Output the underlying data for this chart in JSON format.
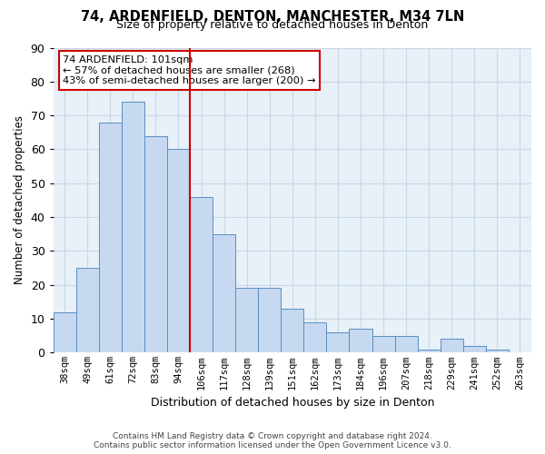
{
  "title": "74, ARDENFIELD, DENTON, MANCHESTER, M34 7LN",
  "subtitle": "Size of property relative to detached houses in Denton",
  "xlabel": "Distribution of detached houses by size in Denton",
  "ylabel": "Number of detached properties",
  "categories": [
    "38sqm",
    "49sqm",
    "61sqm",
    "72sqm",
    "83sqm",
    "94sqm",
    "106sqm",
    "117sqm",
    "128sqm",
    "139sqm",
    "151sqm",
    "162sqm",
    "173sqm",
    "184sqm",
    "196sqm",
    "207sqm",
    "218sqm",
    "229sqm",
    "241sqm",
    "252sqm",
    "263sqm"
  ],
  "values": [
    12,
    25,
    68,
    74,
    64,
    60,
    46,
    35,
    19,
    19,
    13,
    9,
    6,
    7,
    5,
    5,
    1,
    4,
    2,
    1,
    0
  ],
  "bar_color": "#c6d9f0",
  "bar_edge_color": "#5a8fc3",
  "vline_x_index": 5.5,
  "vline_color": "#cc0000",
  "annotation_text": "74 ARDENFIELD: 101sqm\n← 57% of detached houses are smaller (268)\n43% of semi-detached houses are larger (200) →",
  "annotation_box_edge_color": "#cc0000",
  "ylim": [
    0,
    90
  ],
  "yticks": [
    0,
    10,
    20,
    30,
    40,
    50,
    60,
    70,
    80,
    90
  ],
  "footer_line1": "Contains HM Land Registry data © Crown copyright and database right 2024.",
  "footer_line2": "Contains public sector information licensed under the Open Government Licence v3.0.",
  "background_color": "#ffffff",
  "plot_bg_color": "#e8f0f8",
  "grid_color": "#c8d8e8"
}
